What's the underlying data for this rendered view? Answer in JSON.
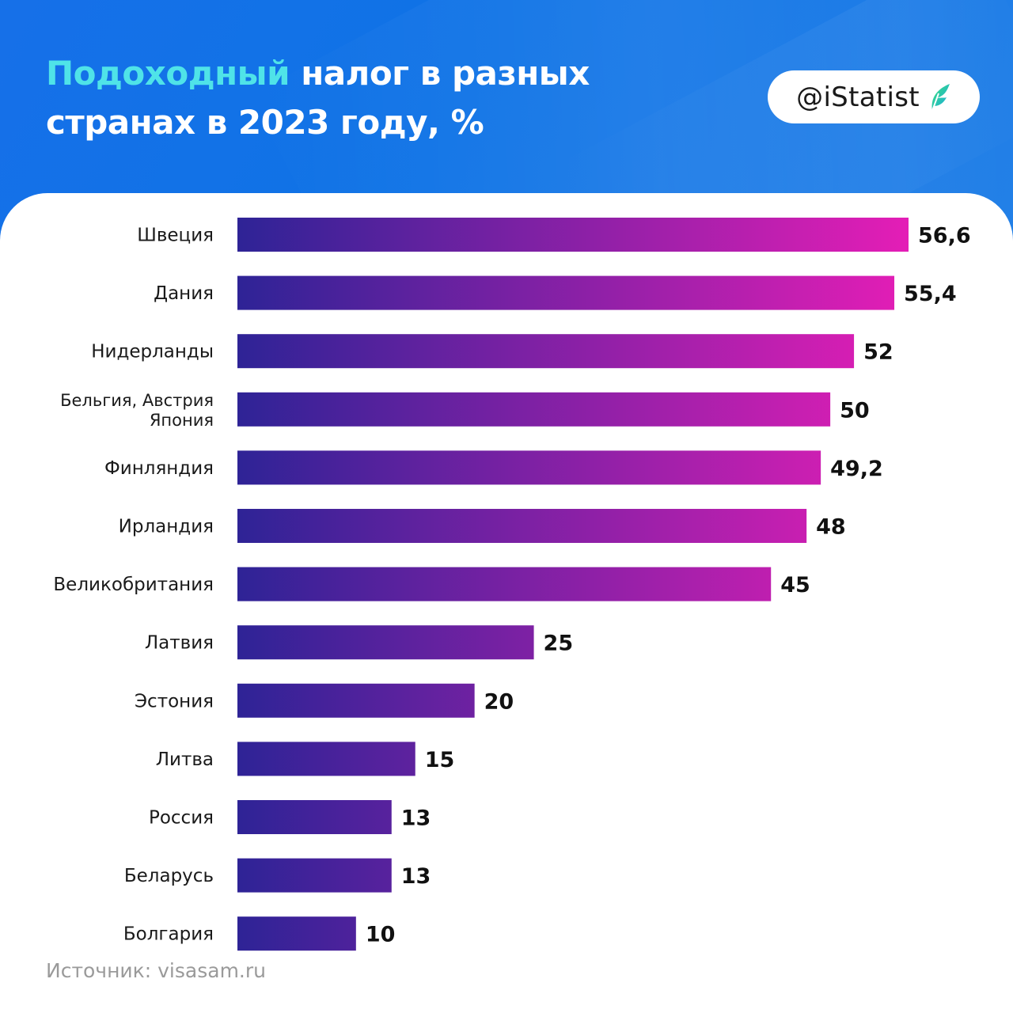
{
  "header": {
    "title_accent": "Подоходный",
    "title_line1_rest": " налог в разных",
    "title_line2": "странах в 2023 году, %"
  },
  "brand": {
    "handle": "@iStatist",
    "logo_icon": "istatist-leaf-icon"
  },
  "colors": {
    "header_bg": "#0f73e6",
    "title_accent": "#4fe3e8",
    "bar_start": "#2e2396",
    "bar_end": "#e41eb6",
    "label_text": "#1a1a1a"
  },
  "chart_data": {
    "type": "bar",
    "orientation": "horizontal",
    "title": "Подоходный налог в разных странах в 2023 году, %",
    "categories": [
      [
        "Швеция"
      ],
      [
        "Дания"
      ],
      [
        "Нидерланды"
      ],
      [
        "Бельгия, Австрия",
        "Япония"
      ],
      [
        "Финляндия"
      ],
      [
        "Ирландия"
      ],
      [
        "Великобритания"
      ],
      [
        "Латвия"
      ],
      [
        "Эстония"
      ],
      [
        "Литва"
      ],
      [
        "Россия"
      ],
      [
        "Беларусь"
      ],
      [
        "Болгария"
      ]
    ],
    "values": [
      56.6,
      55.4,
      52,
      50,
      49.2,
      48,
      45,
      25,
      20,
      15,
      13,
      13,
      10
    ],
    "value_labels": [
      "56,6",
      "55,4",
      "52",
      "50",
      "49,2",
      "48",
      "45",
      "25",
      "20",
      "15",
      "13",
      "13",
      "10"
    ],
    "xlim": [
      0,
      56.6
    ],
    "xlabel": "",
    "ylabel": "",
    "grid": false,
    "legend": "none"
  },
  "source": "Источник: visasam.ru"
}
